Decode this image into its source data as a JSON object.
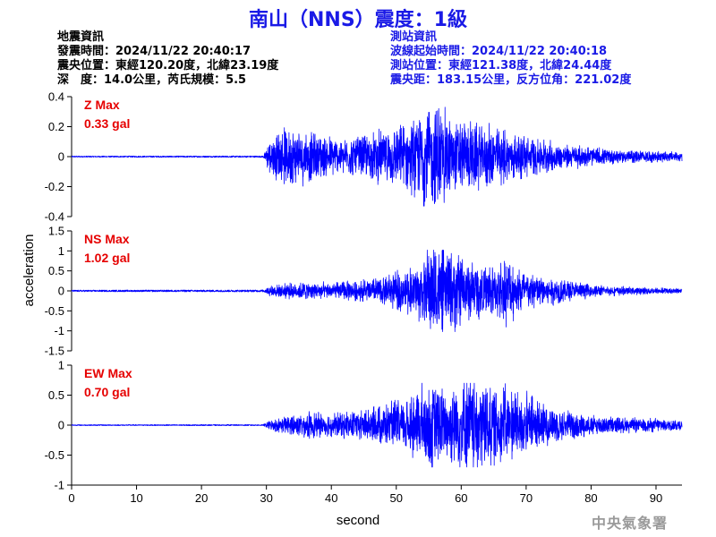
{
  "header": {
    "title": "南山（NNS）震度：1級"
  },
  "quake_info": {
    "heading": "地震資訊",
    "origin_time": "發震時間：2024/11/22 20:40:17",
    "epicenter": "震央位置：東經120.20度，北緯23.19度",
    "depth_magnitude": "深　度：14.0公里，芮氏規模：5.5"
  },
  "station_info": {
    "heading": "測站資訊",
    "wave_onset": "波線起始時間：2024/11/22 20:40:18",
    "location": "測站位置：東經121.38度，北緯24.44度",
    "distance_azimuth": "震央距：183.15公里，反方位角：221.02度"
  },
  "footer": {
    "credit": "中央氣象署"
  },
  "colors": {
    "title": "#1a1ae6",
    "station_text": "#1a1ae6",
    "trace": "#0000ff",
    "max_label": "#e60000",
    "credit": "#9a9a9a"
  },
  "chart_data": {
    "type": "line",
    "xlabel": "second",
    "ylabel": "acceleration",
    "xlim": [
      0,
      94
    ],
    "x_ticks": [
      "0",
      "10",
      "20",
      "30",
      "40",
      "50",
      "60",
      "70",
      "80",
      "90"
    ],
    "x_tick_values": [
      0,
      10,
      20,
      30,
      40,
      50,
      60,
      70,
      80,
      90
    ],
    "grid": false,
    "series": [
      {
        "name": "Z Max",
        "max_label": "0.33 gal",
        "ylim": [
          -0.4,
          0.4
        ],
        "y_ticks": [
          "-0.4",
          "-0.2",
          "0",
          "0.2",
          "0.4"
        ],
        "y_tick_values": [
          -0.4,
          -0.2,
          0,
          0.2,
          0.4
        ],
        "peak": 0.33,
        "onset_s": 30,
        "envelope": [
          [
            0,
            0.004
          ],
          [
            29.5,
            0.005
          ],
          [
            30.5,
            0.09
          ],
          [
            33,
            0.16
          ],
          [
            38,
            0.12
          ],
          [
            42,
            0.09
          ],
          [
            47,
            0.13
          ],
          [
            52,
            0.17
          ],
          [
            56,
            0.3
          ],
          [
            59,
            0.2
          ],
          [
            62,
            0.18
          ],
          [
            65,
            0.16
          ],
          [
            70,
            0.11
          ],
          [
            75,
            0.07
          ],
          [
            80,
            0.05
          ],
          [
            85,
            0.035
          ],
          [
            94,
            0.025
          ]
        ]
      },
      {
        "name": "NS Max",
        "max_label": "1.02 gal",
        "ylim": [
          -1.5,
          1.5
        ],
        "y_ticks": [
          "-1.5",
          "-1",
          "-0.5",
          "0",
          "0.5",
          "1",
          "1.5"
        ],
        "y_tick_values": [
          -1.5,
          -1,
          -0.5,
          0,
          0.5,
          1,
          1.5
        ],
        "peak": 1.02,
        "onset_s": 30,
        "envelope": [
          [
            0,
            0.02
          ],
          [
            29.5,
            0.025
          ],
          [
            30.5,
            0.1
          ],
          [
            35,
            0.18
          ],
          [
            40,
            0.16
          ],
          [
            45,
            0.22
          ],
          [
            50,
            0.35
          ],
          [
            53,
            0.55
          ],
          [
            56,
            0.95
          ],
          [
            59,
            0.75
          ],
          [
            62,
            0.55
          ],
          [
            64,
            0.5
          ],
          [
            67,
            0.65
          ],
          [
            70,
            0.4
          ],
          [
            75,
            0.25
          ],
          [
            80,
            0.12
          ],
          [
            85,
            0.08
          ],
          [
            94,
            0.05
          ]
        ]
      },
      {
        "name": "EW Max",
        "max_label": "0.70 gal",
        "ylim": [
          -1,
          1
        ],
        "y_ticks": [
          "-1",
          "-0.5",
          "0",
          "0.5",
          "1"
        ],
        "y_tick_values": [
          -1,
          -0.5,
          0,
          0.5,
          1
        ],
        "peak": 0.7,
        "onset_s": 30,
        "envelope": [
          [
            0,
            0.008
          ],
          [
            29.5,
            0.01
          ],
          [
            30.5,
            0.06
          ],
          [
            33,
            0.12
          ],
          [
            37,
            0.17
          ],
          [
            40,
            0.15
          ],
          [
            44,
            0.2
          ],
          [
            48,
            0.25
          ],
          [
            52,
            0.4
          ],
          [
            55,
            0.6
          ],
          [
            58,
            0.5
          ],
          [
            61,
            0.68
          ],
          [
            64,
            0.55
          ],
          [
            67,
            0.48
          ],
          [
            70,
            0.42
          ],
          [
            75,
            0.2
          ],
          [
            80,
            0.13
          ],
          [
            85,
            0.1
          ],
          [
            94,
            0.08
          ]
        ]
      }
    ]
  }
}
